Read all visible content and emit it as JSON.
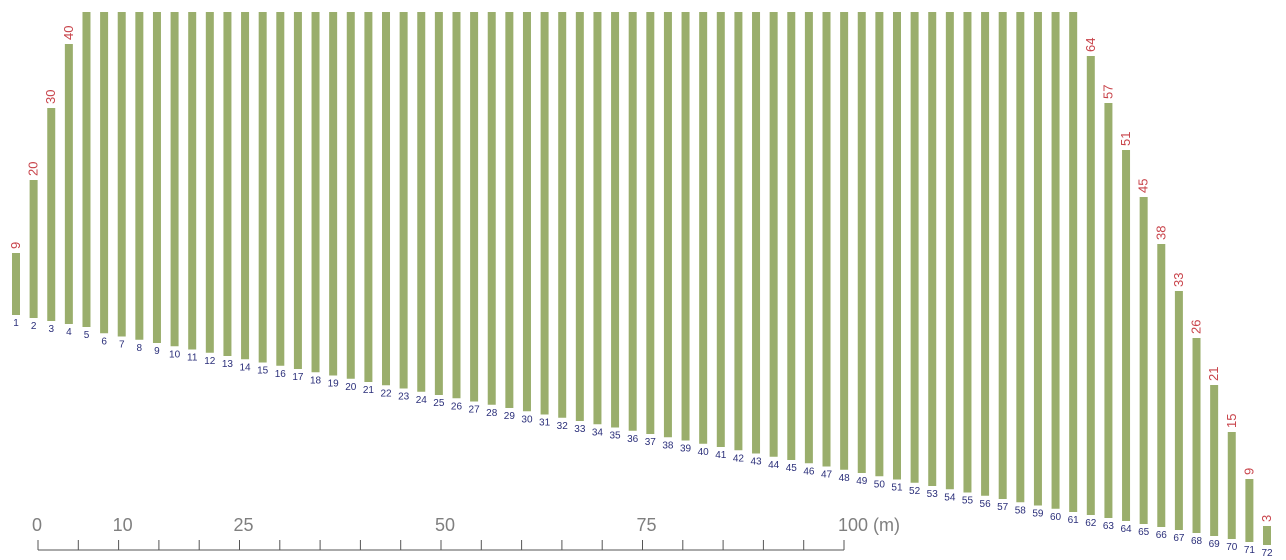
{
  "stake_color": "#9aae6c",
  "index_color": "#2b2f7a",
  "length_color": "#c8434a",
  "length_labels": [
    {
      "index": 1,
      "text": "9"
    },
    {
      "index": 2,
      "text": "20"
    },
    {
      "index": 3,
      "text": "30"
    },
    {
      "index": 4,
      "text": "40"
    },
    {
      "index": 62,
      "text": "64"
    },
    {
      "index": 63,
      "text": "57"
    },
    {
      "index": 64,
      "text": "51"
    },
    {
      "index": 65,
      "text": "45"
    },
    {
      "index": 66,
      "text": "38"
    },
    {
      "index": 67,
      "text": "33"
    },
    {
      "index": 68,
      "text": "26"
    },
    {
      "index": 69,
      "text": "21"
    },
    {
      "index": 70,
      "text": "15"
    },
    {
      "index": 71,
      "text": "9"
    },
    {
      "index": 72,
      "text": "3"
    }
  ],
  "scale": {
    "labels": [
      {
        "value": 0,
        "text": "0"
      },
      {
        "value": 10,
        "text": "10"
      },
      {
        "value": 25,
        "text": "25"
      },
      {
        "value": 50,
        "text": "50"
      },
      {
        "value": 75,
        "text": "75"
      },
      {
        "value": 100,
        "text": "100 (m)"
      }
    ],
    "ticks": [
      0,
      5,
      10,
      15,
      20,
      25,
      30,
      35,
      40,
      45,
      50,
      55,
      60,
      65,
      70,
      75,
      80,
      85,
      90,
      95,
      100
    ]
  }
}
